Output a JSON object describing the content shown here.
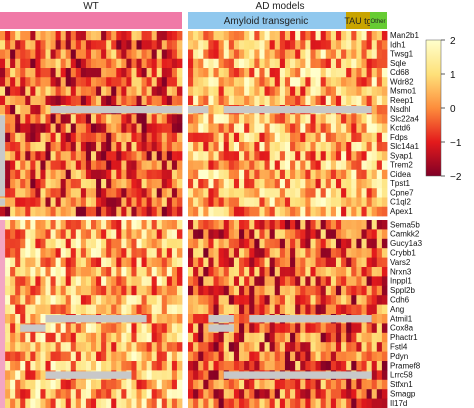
{
  "chart_data": {
    "type": "heatmap",
    "groups": [
      {
        "label": "WT",
        "color": "#f07aa7"
      },
      {
        "label": "AD models",
        "color": "#ffffff"
      },
      {
        "label": "Amyloid transgenic",
        "color": "#90c8ee"
      },
      {
        "label": "TAU tg",
        "color": "#c8a400"
      },
      {
        "label": "Other",
        "color": "#66cc33"
      }
    ],
    "genes_top": [
      "Man2b1",
      "Idh1",
      "Twsg1",
      "Sqle",
      "Cd68",
      "Wdr82",
      "Msmo1",
      "Reep1",
      "Nsdhl",
      "Slc22a4",
      "Kctd6",
      "Fdps",
      "Slc14a1",
      "Syap1",
      "Trem2",
      "Cidea",
      "Tpst1",
      "Cpne7",
      "C1ql2",
      "Apex1"
    ],
    "genes_bottom": [
      "Sema5b",
      "Camkk2",
      "Gucy1a3",
      "Crybb1",
      "Vars2",
      "Nrxn3",
      "Inppl1",
      "Sppl2b",
      "Cdh6",
      "Ang",
      "Atmil1",
      "Cox8a",
      "Phactr1",
      "Fstl4",
      "Pdyn",
      "Pramef8",
      "Lrrc58",
      "Stfxn1",
      "Smagp",
      "Il17d"
    ],
    "colorbar": {
      "min": -2,
      "max": 2,
      "ticks": [
        "2",
        "1",
        "0",
        "−1",
        "−2"
      ],
      "colors": [
        "#ffffcc",
        "#fee17a",
        "#fd8d3c",
        "#e31a1c",
        "#800026"
      ]
    },
    "missing_color": "#c8c8c8"
  }
}
